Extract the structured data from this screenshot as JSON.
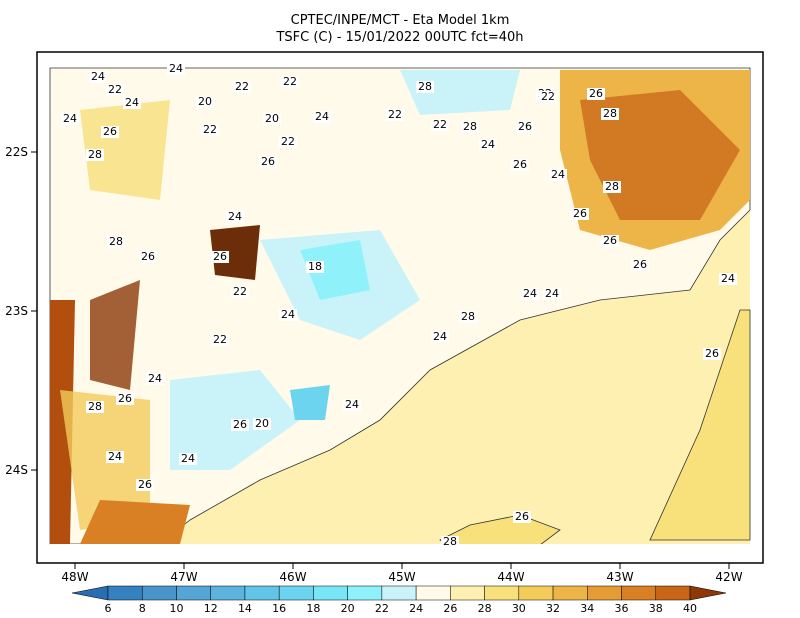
{
  "header": {
    "title": "CPTEC/INPE/MCT -  Eta Model 1km",
    "subtitle": "TSFC (C) - 15/01/2022 00UTC fct=40h"
  },
  "map": {
    "lon_ticks": [
      "48W",
      "47W",
      "46W",
      "45W",
      "44W",
      "43W",
      "42W"
    ],
    "lat_ticks": [
      "22S",
      "23S",
      "24S"
    ],
    "contour_labels": [
      24,
      22,
      24,
      24,
      20,
      22,
      22,
      26,
      24,
      28,
      22,
      24,
      22,
      26,
      22,
      28,
      22,
      28,
      26,
      24,
      26,
      28,
      24,
      22,
      20,
      24,
      26,
      28,
      26,
      18,
      22,
      24,
      22,
      20,
      24,
      26,
      28,
      24,
      26,
      24,
      26,
      24,
      24,
      28,
      24,
      24,
      26,
      26,
      26,
      22,
      26,
      28,
      24,
      26,
      26,
      28
    ]
  },
  "colorbar": {
    "labels": [
      6,
      8,
      10,
      12,
      14,
      16,
      18,
      20,
      22,
      24,
      26,
      28,
      30,
      32,
      34,
      36,
      38,
      40
    ],
    "colors": [
      "#2a6db0",
      "#3580bf",
      "#4a94cc",
      "#55a6d6",
      "#5cb4de",
      "#62c4e6",
      "#6cd4ee",
      "#78e6f6",
      "#8ff2fb",
      "#c9f3f9",
      "#fffaea",
      "#fdf0b0",
      "#f8e07a",
      "#f3cc5a",
      "#edb548",
      "#e59c35",
      "#d98024",
      "#c86618",
      "#8c3808"
    ]
  }
}
